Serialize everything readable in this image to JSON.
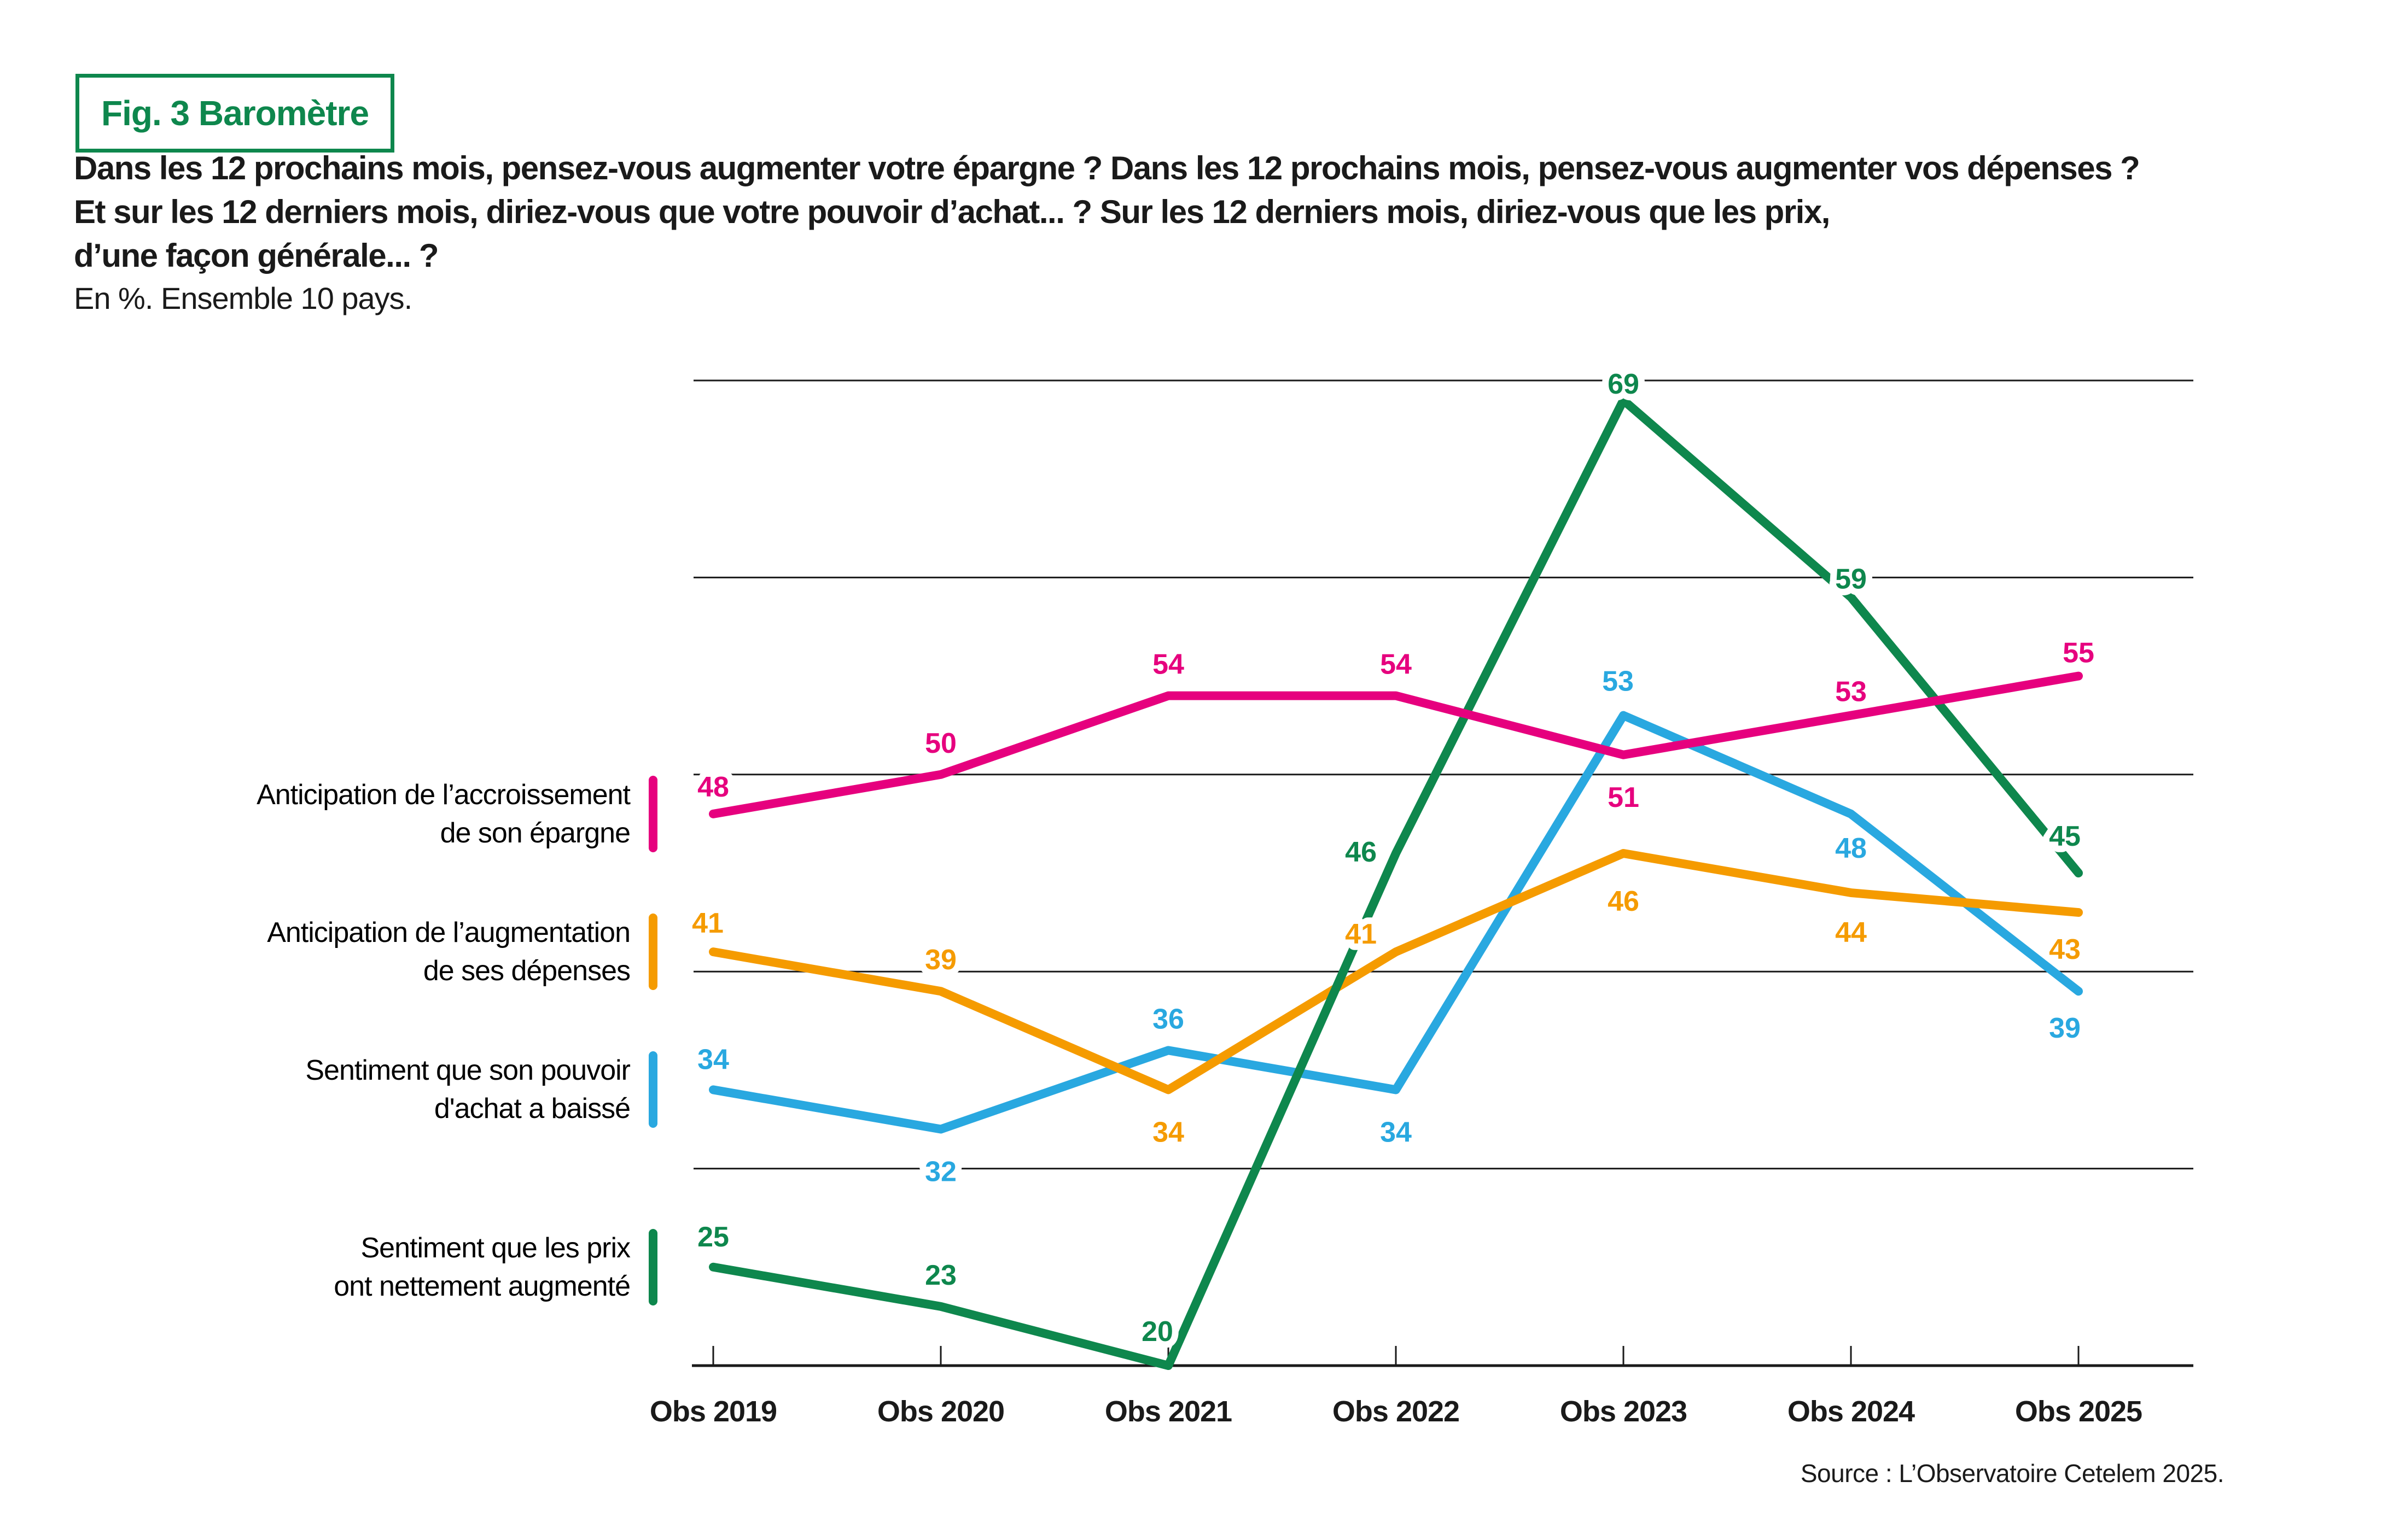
{
  "figure": {
    "tag": "Fig. 3 Baromètre",
    "accent_color": "#0E874D"
  },
  "title_lines": [
    "Dans les 12 prochains mois, pensez-vous augmenter votre épargne ? Dans les 12 prochains mois, pensez-vous augmenter vos dépenses ?",
    "Et sur les 12 derniers mois, diriez-vous que votre pouvoir d’achat... ? Sur les 12 derniers mois, diriez-vous que les prix,",
    "d’une façon générale... ?"
  ],
  "subtitle": "En %. Ensemble 10 pays.",
  "source": "Source : L’Observatoire Cetelem 2025.",
  "chart_data": {
    "type": "line",
    "categories": [
      "Obs 2019",
      "Obs 2020",
      "Obs 2021",
      "Obs 2022",
      "Obs 2023",
      "Obs 2024",
      "Obs 2025"
    ],
    "ylim": [
      20,
      72
    ],
    "gridlines": [
      20,
      30,
      40,
      50,
      60,
      70
    ],
    "grid": true,
    "legend_position": "left",
    "axis_color": "#1a1a1a",
    "series": [
      {
        "name": "Anticipation de l’accroissement de son épargne",
        "label_lines": [
          "Anticipation de l’accroissement",
          "de son épargne"
        ],
        "color": "#E6007E",
        "values": [
          48,
          50,
          54,
          54,
          51,
          53,
          55
        ]
      },
      {
        "name": "Anticipation de l’augmentation de ses dépenses",
        "label_lines": [
          "Anticipation de l’augmentation",
          "de ses dépenses"
        ],
        "color": "#F59B00",
        "values": [
          41,
          39,
          34,
          41,
          46,
          44,
          43
        ]
      },
      {
        "name": "Sentiment que son pouvoir d'achat a baissé",
        "label_lines": [
          "Sentiment que son pouvoir",
          "d'achat a baissé"
        ],
        "color": "#29A8E0",
        "values": [
          34,
          32,
          36,
          34,
          53,
          48,
          39
        ]
      },
      {
        "name": "Sentiment que les prix ont nettement augmenté",
        "label_lines": [
          "Sentiment que les prix",
          "ont nettement augmenté"
        ],
        "color": "#0E874D",
        "values": [
          25,
          23,
          20,
          46,
          69,
          59,
          45
        ]
      }
    ]
  }
}
